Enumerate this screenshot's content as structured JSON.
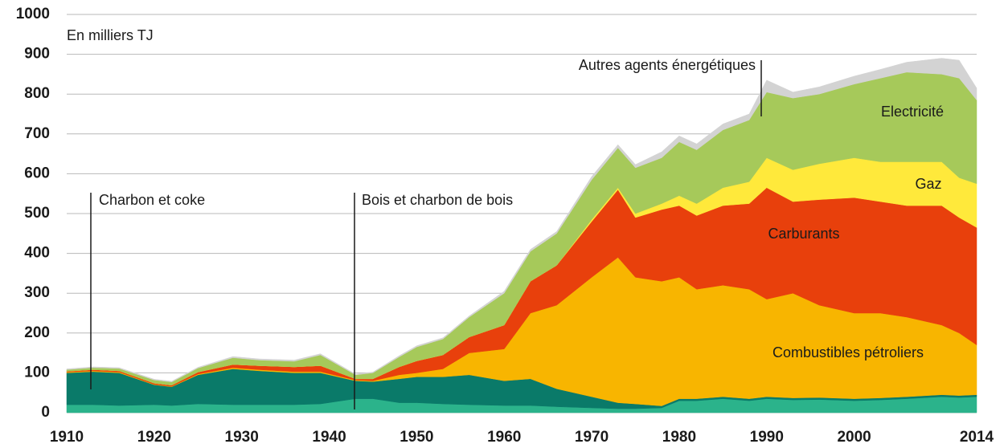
{
  "chart_data": {
    "type": "stacked_area",
    "y_label": "En milliers TJ",
    "x": [
      1910,
      1913,
      1916,
      1920,
      1922,
      1925,
      1929,
      1932,
      1936,
      1939,
      1943,
      1945,
      1948,
      1950,
      1953,
      1956,
      1960,
      1963,
      1966,
      1970,
      1973,
      1975,
      1978,
      1980,
      1982,
      1985,
      1988,
      1990,
      1993,
      1996,
      2000,
      2003,
      2006,
      2010,
      2012,
      2014
    ],
    "series": [
      {
        "name": "Bois et charbon de bois",
        "color": "#2bb38b",
        "values": [
          20,
          20,
          18,
          20,
          18,
          22,
          20,
          20,
          20,
          22,
          35,
          35,
          25,
          25,
          22,
          20,
          18,
          18,
          15,
          12,
          10,
          10,
          12,
          30,
          30,
          35,
          30,
          35,
          32,
          33,
          30,
          32,
          35,
          40,
          38,
          40
        ]
      },
      {
        "name": "Charbon et coke",
        "color": "#0a7a69",
        "values": [
          80,
          83,
          82,
          50,
          47,
          73,
          90,
          85,
          80,
          78,
          45,
          43,
          60,
          65,
          68,
          75,
          62,
          67,
          45,
          28,
          15,
          12,
          5,
          5,
          5,
          5,
          5,
          5,
          5,
          5,
          5,
          5,
          5,
          5,
          5,
          5
        ]
      },
      {
        "name": "Combustibles pétroliers",
        "color": "#f8b500",
        "values": [
          2,
          2,
          2,
          1,
          1,
          2,
          3,
          3,
          3,
          3,
          2,
          2,
          10,
          10,
          20,
          55,
          80,
          165,
          210,
          300,
          365,
          318,
          313,
          305,
          275,
          280,
          275,
          245,
          263,
          232,
          215,
          213,
          200,
          175,
          157,
          125
        ]
      },
      {
        "name": "Carburants",
        "color": "#e8400c",
        "values": [
          2,
          3,
          3,
          3,
          3,
          5,
          8,
          10,
          12,
          15,
          3,
          5,
          20,
          30,
          35,
          40,
          60,
          80,
          100,
          140,
          170,
          150,
          180,
          180,
          185,
          200,
          215,
          280,
          230,
          265,
          290,
          280,
          280,
          300,
          290,
          295
        ]
      },
      {
        "name": "Gaz",
        "color": "#ffe93b",
        "values": [
          0,
          0,
          0,
          0,
          0,
          0,
          0,
          0,
          0,
          0,
          0,
          0,
          0,
          0,
          0,
          0,
          0,
          0,
          0,
          5,
          5,
          10,
          15,
          25,
          30,
          45,
          55,
          75,
          80,
          90,
          100,
          100,
          110,
          110,
          100,
          110
        ]
      },
      {
        "name": "Electricité",
        "color": "#a6c95a",
        "values": [
          4,
          5,
          6,
          8,
          8,
          10,
          17,
          14,
          14,
          27,
          10,
          15,
          25,
          35,
          40,
          50,
          80,
          75,
          80,
          100,
          100,
          115,
          115,
          135,
          135,
          145,
          155,
          165,
          180,
          175,
          185,
          210,
          225,
          220,
          250,
          210
        ]
      },
      {
        "name": "Autres agents énergétiques",
        "color": "#d3d3d3",
        "values": [
          2,
          2,
          2,
          2,
          2,
          2,
          3,
          3,
          3,
          3,
          2,
          2,
          3,
          3,
          3,
          3,
          5,
          5,
          5,
          8,
          8,
          8,
          15,
          15,
          15,
          15,
          15,
          30,
          15,
          18,
          20,
          22,
          25,
          40,
          45,
          30
        ]
      }
    ],
    "xlim": [
      1910,
      2014
    ],
    "xticks": [
      1910,
      1920,
      1930,
      1940,
      1950,
      1960,
      1970,
      1980,
      1990,
      2000,
      2014
    ],
    "ylim": [
      0,
      1000
    ],
    "yticks": [
      0,
      100,
      200,
      300,
      400,
      500,
      600,
      700,
      800,
      900,
      1000
    ],
    "grid": true
  }
}
